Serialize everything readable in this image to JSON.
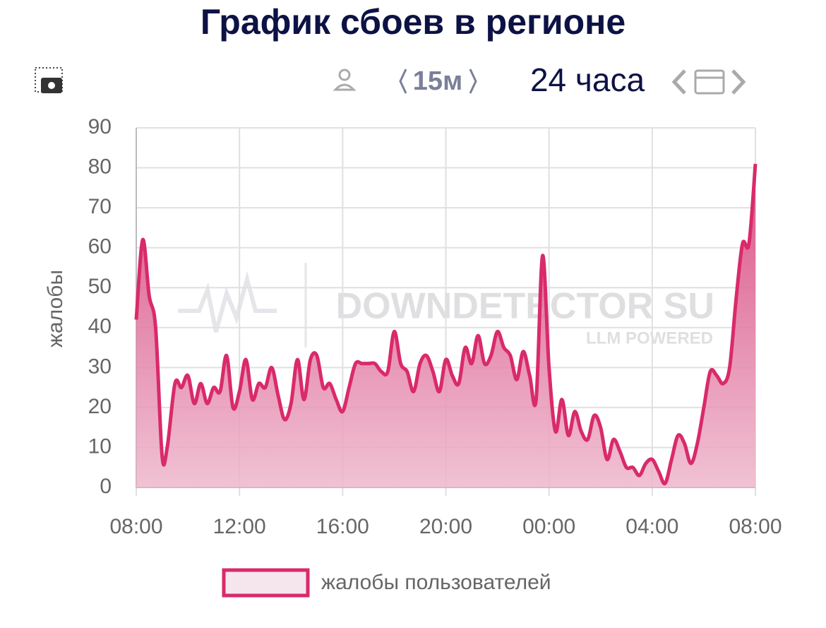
{
  "header": {
    "title": "График сбоев в регионе",
    "interval": "15м",
    "range": "24 часа"
  },
  "watermark": {
    "brand": "DOWNDETECTOR SU",
    "tagline": "LLM POWERED"
  },
  "chart_data": {
    "type": "area",
    "y_label": "жалобы",
    "x": [
      8,
      8.25,
      8.5,
      8.75,
      9,
      9.2,
      9.5,
      9.75,
      10,
      10.25,
      10.5,
      10.75,
      11,
      11.25,
      11.5,
      11.75,
      12,
      12.25,
      12.5,
      12.75,
      13,
      13.25,
      13.5,
      13.75,
      14,
      14.25,
      14.5,
      14.75,
      15,
      15.25,
      15.5,
      15.75,
      16,
      16.25,
      16.5,
      16.75,
      17,
      17.25,
      17.5,
      17.75,
      18,
      18.25,
      18.5,
      18.75,
      19,
      19.25,
      19.5,
      19.75,
      20,
      20.25,
      20.5,
      20.75,
      21,
      21.25,
      21.5,
      21.75,
      22,
      22.25,
      22.5,
      22.75,
      23,
      23.25,
      23.5,
      23.75,
      24,
      24.25,
      24.5,
      24.75,
      25,
      25.25,
      25.5,
      25.75,
      26,
      26.25,
      26.5,
      26.75,
      27,
      27.25,
      27.5,
      27.75,
      28,
      28.25,
      28.5,
      28.75,
      29,
      29.25,
      29.5,
      29.75,
      30,
      30.25,
      30.5,
      30.75,
      31,
      31.25,
      31.5,
      31.75,
      32
    ],
    "series": [
      {
        "name": "жалобы пользователей",
        "color": "#d92a6a",
        "values": [
          42,
          62,
          48,
          40,
          8,
          10,
          26,
          25,
          28,
          21,
          26,
          21,
          25,
          24,
          33,
          20,
          24,
          32,
          22,
          26,
          25,
          30,
          23,
          17,
          21,
          32,
          22,
          32,
          33,
          25,
          26,
          22,
          19,
          25,
          31,
          31,
          31,
          31,
          29,
          29,
          39,
          31,
          29,
          24,
          31,
          33,
          29,
          24,
          32,
          28,
          26,
          35,
          31,
          38,
          31,
          33,
          39,
          35,
          33,
          27,
          34,
          28,
          22,
          58,
          30,
          14,
          22,
          13,
          19,
          14,
          12,
          18,
          15,
          7,
          12,
          9,
          5,
          5,
          3,
          6,
          7,
          4,
          1,
          7,
          13,
          11,
          6,
          11,
          20,
          29,
          28,
          26,
          30,
          47,
          61,
          61,
          81
        ]
      }
    ],
    "xlim": [
      8,
      32
    ],
    "xticks": [
      {
        "value": 8,
        "label": "08:00"
      },
      {
        "value": 12,
        "label": "12:00"
      },
      {
        "value": 16,
        "label": "16:00"
      },
      {
        "value": 20,
        "label": "20:00"
      },
      {
        "value": 24,
        "label": "00:00"
      },
      {
        "value": 28,
        "label": "04:00"
      },
      {
        "value": 32,
        "label": "08:00"
      }
    ],
    "ylim": [
      0,
      90
    ],
    "yticks": [
      0,
      10,
      20,
      30,
      40,
      50,
      60,
      70,
      80,
      90
    ],
    "grid": true
  }
}
